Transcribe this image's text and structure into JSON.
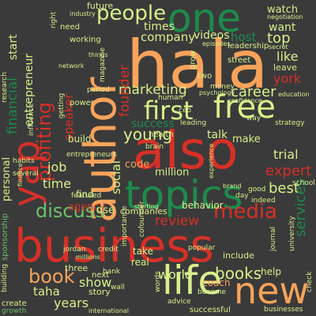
{
  "words": {
    "business": "business",
    "hala": "hala",
    "also": "also",
    "author": "author",
    "topics": "topics",
    "new": "new",
    "life": "life",
    "one": "one",
    "free": "free",
    "yap": "yap",
    "people": "people",
    "first": "first",
    "profiting": "profiting",
    "discuss": "discuss",
    "media": "media",
    "book": "book",
    "books": "books",
    "marketing": "marketing",
    "company": "company",
    "founder": "founder",
    "financial": "financial",
    "entrepreneur": "entrepreneur",
    "career": "career",
    "young": "young",
    "review": "review",
    "world": "world",
    "show": "show",
    "taha": "taha",
    "years": "years",
    "time": "time",
    "job": "job",
    "expert": "expert",
    "trial": "trial",
    "best": "best",
    "services": "services",
    "like": "like",
    "york": "york",
    "top": "top",
    "want": "want",
    "watch": "watch",
    "host": "host",
    "times": "times",
    "videos": "videos",
    "speaker": "speaker",
    "success": "success",
    "social": "social",
    "code": "code",
    "million": "million",
    "agency": "agency",
    "companies": "companies",
    "personal": "personal",
    "start": "start",
    "make": "make",
    "talk": "talk",
    "build": "build",
    "find": "find",
    "use": "use",
    "help": "help",
    "include": "include",
    "three": "three",
    "coach": "coach",
    "story": "story",
    "take": "take",
    "real": "real",
    "behavior": "behavior",
    "sponsorship": "sponsorship",
    "future": "future",
    "leave": "leave",
    "leadership": "leadership",
    "industry": "industry",
    "need": "need",
    "working": "working",
    "things": "things",
    "magazine": "magazine",
    "grow": "grow",
    "street": "street",
    "two": "two",
    "money": "money",
    "human": "human",
    "health": "health",
    "leading": "leading",
    "brain": "brain",
    "school": "school",
    "university": "university",
    "journal": "journal",
    "check": "check",
    "businesses": "businesses",
    "featured": "featured",
    "several": "several",
    "habits": "habits",
    "jordan": "jordan",
    "credit": "credit",
    "next": "next",
    "bank": "bank",
    "wall": "wall",
    "popular": "popular",
    "cofounder": "cofounder",
    "importance": "importance",
    "become": "become",
    "successful": "successful",
    "building": "building",
    "create": "create",
    "growth": "growth",
    "research": "research",
    "influence": "influence",
    "entrepreneurs": "entrepreneurs",
    "getting": "getting",
    "power": "power",
    "strategy": "strategy",
    "day": "day",
    "good": "good",
    "indeed": "indeed",
    "right": "right",
    "negotiation": "negotiation",
    "secret": "secret",
    "episodes": "episodes",
    "period": "period",
    "experience": "experience",
    "confidence": "confidence",
    "psychology": "psychology",
    "education": "education",
    "finance": "finance",
    "millions": "millions",
    "international": "international",
    "advice": "advice",
    "words": "words",
    "starting": "starting",
    "brand": "brand",
    "way": "way",
    "ceo": "ceo",
    "network": "network"
  }
}
